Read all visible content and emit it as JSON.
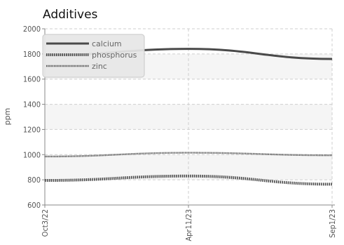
{
  "chart_data": {
    "type": "line",
    "title": "Additives",
    "ylabel": "ppm",
    "xlabel": "",
    "ylim": [
      600,
      2000
    ],
    "yticks": [
      600,
      800,
      1000,
      1200,
      1400,
      1600,
      1800,
      2000
    ],
    "x": [
      "Oct3/22",
      "Apr11/23",
      "Sep1/23"
    ],
    "grid": true,
    "legend": "top-left",
    "series": [
      {
        "name": "calcium",
        "values": [
          1790,
          1840,
          1760
        ],
        "color": "#4a4a4a",
        "style": "solid"
      },
      {
        "name": "phosphorus",
        "values": [
          795,
          830,
          765
        ],
        "color": "#4a4a4a",
        "style": "dotted-thick"
      },
      {
        "name": "zinc",
        "values": [
          985,
          1015,
          995
        ],
        "color": "#4a4a4a",
        "style": "dotted-thin"
      }
    ]
  }
}
